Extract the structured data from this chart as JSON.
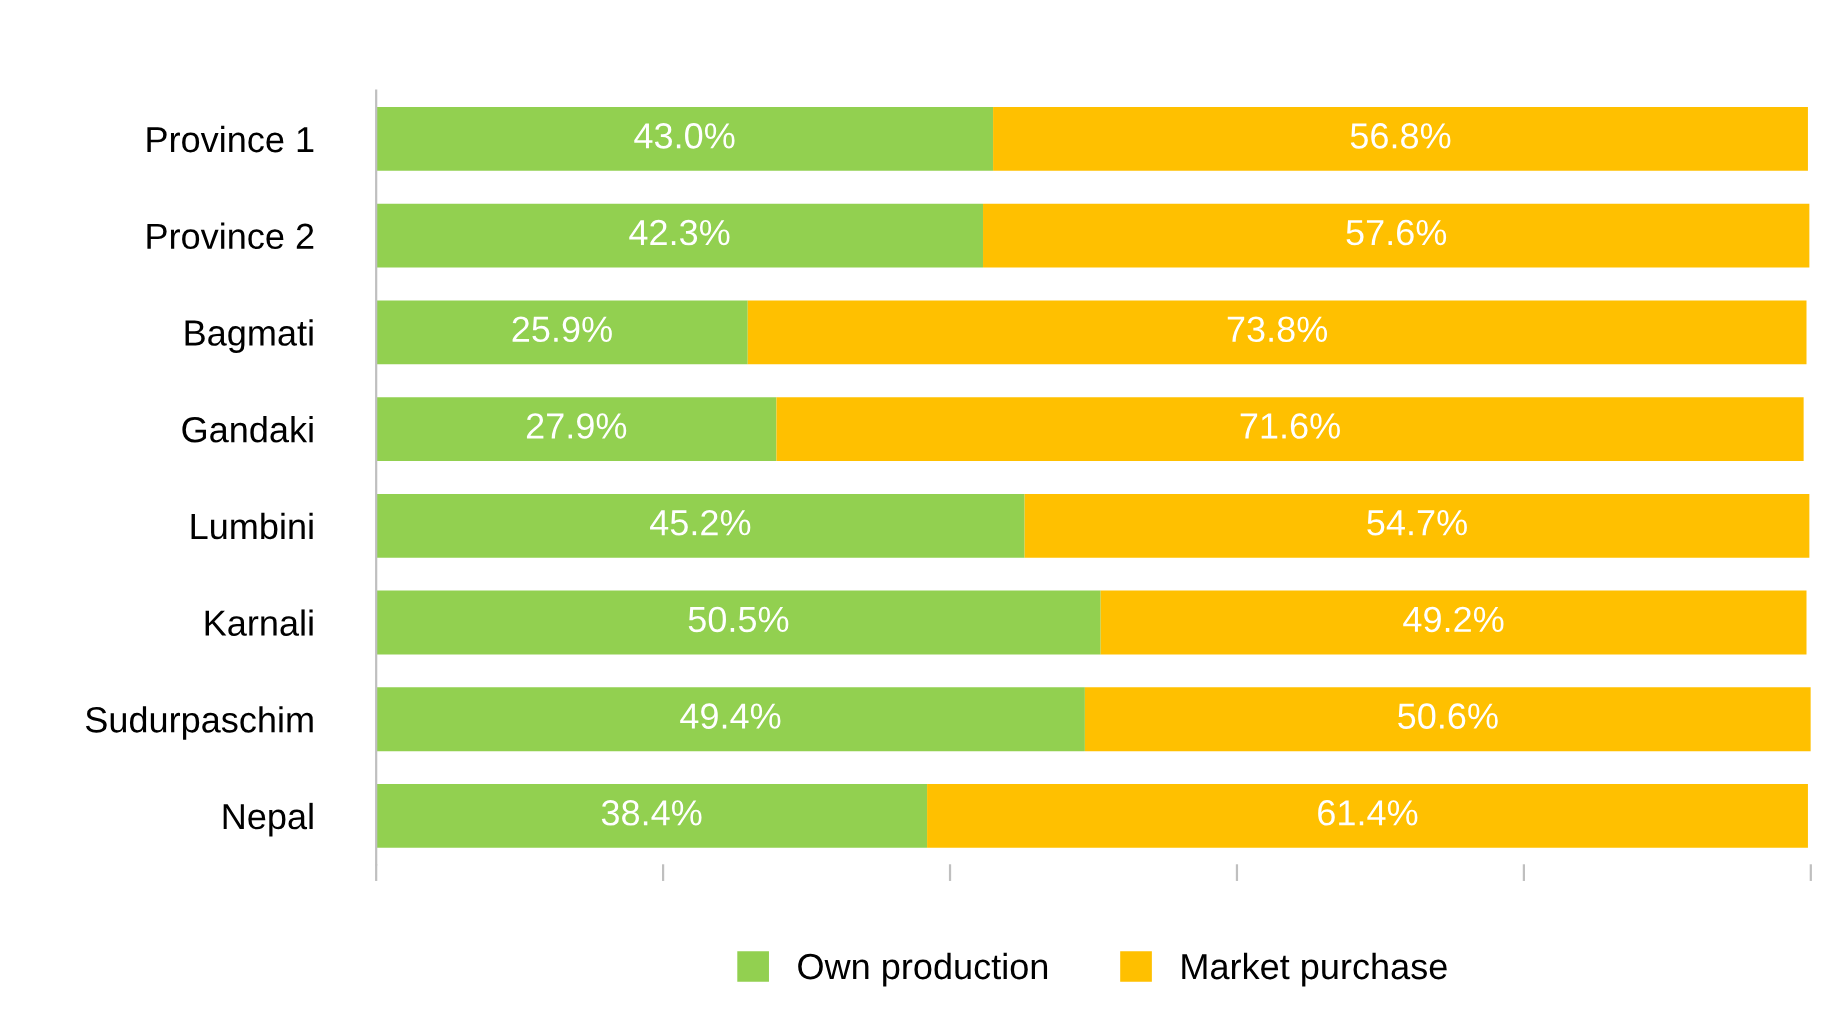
{
  "chart_data": {
    "type": "bar",
    "orientation": "horizontal",
    "stacked": true,
    "categories": [
      "Province 1",
      "Province 2",
      "Bagmati",
      "Gandaki",
      "Lumbini",
      "Karnali",
      "Sudurpaschim",
      "Nepal"
    ],
    "series": [
      {
        "name": "Own production",
        "color": "#92d050",
        "values": [
          43.0,
          42.3,
          25.9,
          27.9,
          45.2,
          50.5,
          49.4,
          38.4
        ],
        "value_labels": [
          "43.0%",
          "42.3%",
          "25.9%",
          "27.9%",
          "45.2%",
          "50.5%",
          "49.4%",
          "38.4%"
        ]
      },
      {
        "name": "Market purchase",
        "color": "#ffc000",
        "values": [
          56.8,
          57.6,
          73.8,
          71.6,
          54.7,
          49.2,
          50.6,
          61.4
        ],
        "value_labels": [
          "56.8%",
          "57.6%",
          "73.8%",
          "71.6%",
          "54.7%",
          "49.2%",
          "50.6%",
          "61.4%"
        ]
      }
    ],
    "tick_labels": "y",
    "grid": false,
    "legend": "bottom"
  }
}
